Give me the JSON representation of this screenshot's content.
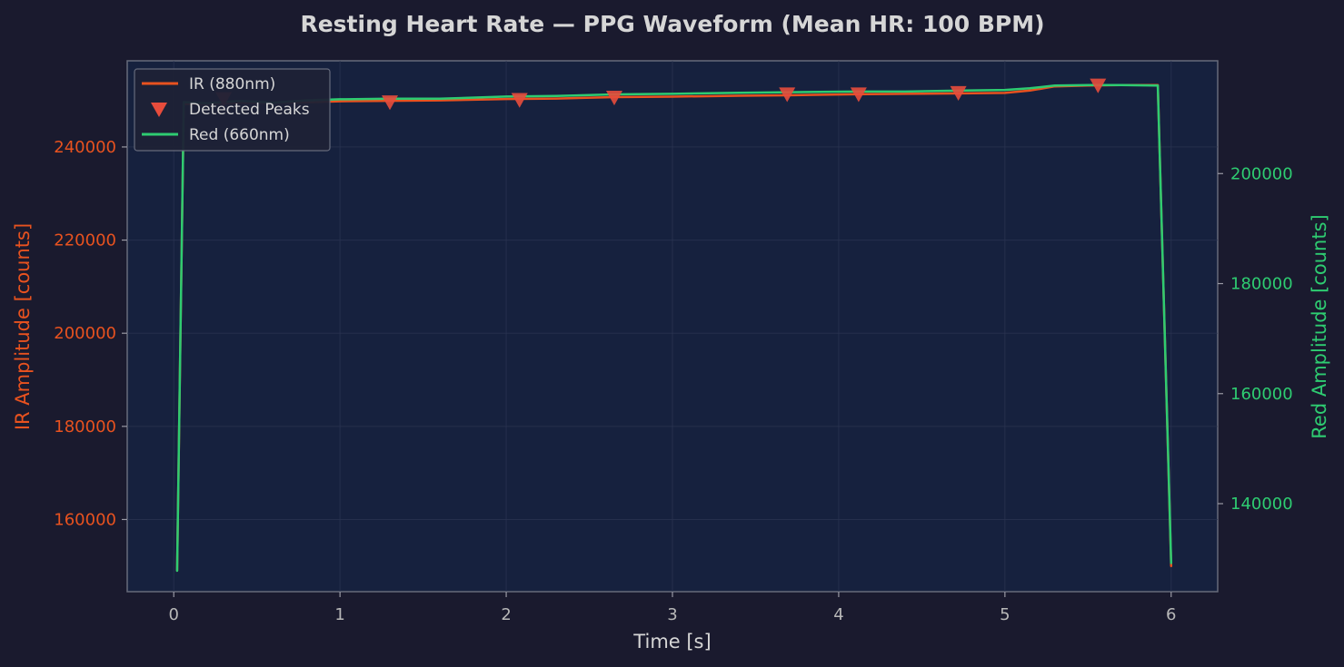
{
  "chart_data": {
    "type": "line",
    "title": "Resting Heart Rate — PPG Waveform (Mean HR: 100 BPM)",
    "xlabel": "Time [s]",
    "ylabel_left": "IR Amplitude [counts]",
    "ylabel_right": "Red Amplitude [counts]",
    "xlim": [
      -0.28,
      6.28
    ],
    "ylim_left": [
      144500,
      258500
    ],
    "ylim_right": [
      124000,
      220500
    ],
    "x_ticks": [
      0,
      1,
      2,
      3,
      4,
      5,
      6
    ],
    "y_left_ticks": [
      160000,
      180000,
      200000,
      220000,
      240000
    ],
    "y_right_ticks": [
      140000,
      160000,
      180000,
      200000
    ],
    "grid": true,
    "legend_position": "top-left",
    "colors": {
      "background": "#1a1a2e",
      "plot_bg": "#16213e",
      "ir": "#e8521f",
      "red": "#2ecc71",
      "peaks": "#e74c3c",
      "text": "#d6d6d6",
      "tick_text": "#b8b8b8"
    },
    "series": [
      {
        "name": "IR (880nm)",
        "axis": "left",
        "color": "#e8521f",
        "x": [
          0.02,
          0.06,
          0.2,
          0.4,
          0.6,
          0.8,
          1.0,
          1.3,
          1.6,
          2.0,
          2.3,
          2.65,
          3.0,
          3.4,
          3.7,
          4.1,
          4.4,
          4.75,
          5.0,
          5.15,
          5.3,
          5.5,
          5.7,
          5.92,
          6.0
        ],
        "y": [
          149000,
          249200,
          249300,
          249500,
          249500,
          249600,
          249800,
          249900,
          250000,
          250300,
          250400,
          250700,
          250800,
          251000,
          251100,
          251300,
          251400,
          251500,
          251600,
          252100,
          253000,
          253200,
          253300,
          253300,
          150000
        ]
      },
      {
        "name": "Red (660nm)",
        "axis": "right",
        "color": "#2ecc71",
        "x": [
          0.02,
          0.06,
          0.2,
          0.4,
          0.6,
          0.8,
          1.0,
          1.3,
          1.6,
          2.0,
          2.3,
          2.65,
          3.0,
          3.4,
          3.7,
          4.1,
          4.4,
          4.75,
          5.0,
          5.15,
          5.3,
          5.5,
          5.7,
          5.92,
          6.0
        ],
        "y": [
          127800,
          213000,
          212800,
          213200,
          212900,
          213300,
          213500,
          213600,
          213600,
          214000,
          214100,
          214400,
          214500,
          214700,
          214800,
          214900,
          214900,
          215100,
          215200,
          215500,
          216000,
          216100,
          216100,
          216000,
          129200
        ]
      }
    ],
    "peaks": {
      "name": "Detected Peaks",
      "axis": "left",
      "x": [
        0.3,
        1.3,
        2.08,
        2.65,
        3.69,
        4.12,
        4.72,
        5.56
      ],
      "y": [
        250200,
        249500,
        250000,
        250500,
        251200,
        251200,
        251500,
        253100
      ]
    }
  }
}
